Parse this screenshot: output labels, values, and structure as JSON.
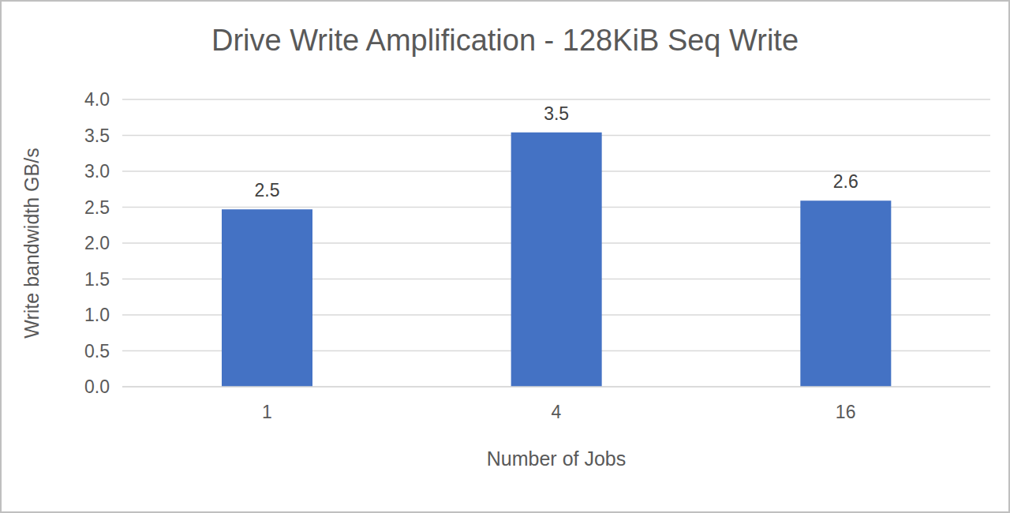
{
  "chart_data": {
    "type": "bar",
    "title": "Drive Write Amplification - 128KiB Seq Write",
    "x_label": "Number of Jobs",
    "y_label": "Write bandwidth GB/s",
    "categories": [
      "1",
      "4",
      "16"
    ],
    "values": [
      2.47,
      3.54,
      2.59
    ],
    "value_labels": [
      "2.5",
      "3.5",
      "2.6"
    ],
    "data_labels": true,
    "color": "#4472c4",
    "ylim": [
      0,
      4
    ],
    "yticks": [
      {
        "value": 0,
        "label": "0.0"
      },
      0.5,
      {
        "value": 1,
        "label": "1.0"
      },
      1.5,
      {
        "value": 2,
        "label": "2.0"
      },
      2.5,
      {
        "value": 3,
        "label": "3.0"
      },
      3.5,
      {
        "value": 4,
        "label": "4.0"
      }
    ],
    "grid": true
  }
}
